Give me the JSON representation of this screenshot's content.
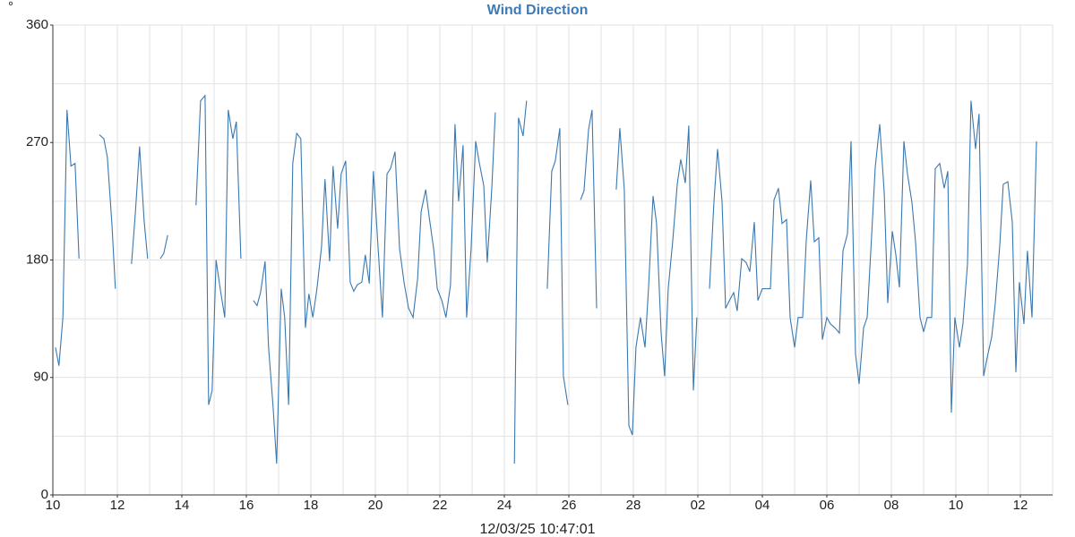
{
  "chart_data": {
    "type": "line",
    "title": "Wind Direction",
    "x_label": "12/03/25 10:47:01",
    "y_label": "°",
    "xlim": [
      0,
      31
    ],
    "ylim": [
      0,
      360
    ],
    "yticks": [
      0,
      90,
      180,
      270,
      360
    ],
    "xticks": [
      {
        "value": 0,
        "label": "10"
      },
      {
        "value": 2,
        "label": "12"
      },
      {
        "value": 4,
        "label": "14"
      },
      {
        "value": 6,
        "label": "16"
      },
      {
        "value": 8,
        "label": "18"
      },
      {
        "value": 10,
        "label": "20"
      },
      {
        "value": 12,
        "label": "22"
      },
      {
        "value": 14,
        "label": "24"
      },
      {
        "value": 16,
        "label": "26"
      },
      {
        "value": 18,
        "label": "28"
      },
      {
        "value": 20,
        "label": "02"
      },
      {
        "value": 22,
        "label": "04"
      },
      {
        "value": 24,
        "label": "06"
      },
      {
        "value": 26,
        "label": "08"
      },
      {
        "value": 28,
        "label": "10"
      },
      {
        "value": 30,
        "label": "12"
      }
    ],
    "grid": true,
    "grid_step": {
      "x": 1,
      "y": 45
    },
    "series": [
      {
        "name": "Wind Direction",
        "color": "#3a78b0",
        "x": [
          0.08,
          0.19,
          0.31,
          0.44,
          0.56,
          0.69,
          0.81,
          1.1,
          1.44,
          1.58,
          1.69,
          1.83,
          1.94,
          2.2,
          2.44,
          2.56,
          2.69,
          2.83,
          2.94,
          3.1,
          3.33,
          3.44,
          3.56,
          4.0,
          4.44,
          4.58,
          4.72,
          4.83,
          4.94,
          5.06,
          5.19,
          5.33,
          5.44,
          5.58,
          5.69,
          5.83,
          6.0,
          6.22,
          6.33,
          6.44,
          6.58,
          6.69,
          6.83,
          6.94,
          7.08,
          7.19,
          7.31,
          7.44,
          7.56,
          7.69,
          7.83,
          7.94,
          8.06,
          8.19,
          8.33,
          8.44,
          8.58,
          8.69,
          8.83,
          8.94,
          9.08,
          9.22,
          9.33,
          9.44,
          9.58,
          9.69,
          9.81,
          9.94,
          10.08,
          10.22,
          10.36,
          10.47,
          10.61,
          10.75,
          10.89,
          11.03,
          11.17,
          11.31,
          11.42,
          11.56,
          11.67,
          11.81,
          11.92,
          12.06,
          12.19,
          12.33,
          12.47,
          12.58,
          12.72,
          12.83,
          12.97,
          13.11,
          13.22,
          13.36,
          13.47,
          13.61,
          13.72,
          14.0,
          14.31,
          14.44,
          14.58,
          14.69,
          15.0,
          15.33,
          15.47,
          15.58,
          15.72,
          15.83,
          15.97,
          16.2,
          16.36,
          16.47,
          16.61,
          16.72,
          16.86,
          17.2,
          17.47,
          17.58,
          17.72,
          17.86,
          17.97,
          18.08,
          18.22,
          18.36,
          18.47,
          18.61,
          18.72,
          18.86,
          18.97,
          19.08,
          19.22,
          19.36,
          19.47,
          19.61,
          19.72,
          19.86,
          19.97,
          20.2,
          20.36,
          20.5,
          20.61,
          20.75,
          20.86,
          21.0,
          21.11,
          21.22,
          21.36,
          21.5,
          21.61,
          21.75,
          21.86,
          22.0,
          22.11,
          22.25,
          22.36,
          22.5,
          22.61,
          22.75,
          22.86,
          23.0,
          23.11,
          23.25,
          23.36,
          23.5,
          23.61,
          23.75,
          23.86,
          24.0,
          24.11,
          24.25,
          24.39,
          24.5,
          24.64,
          24.75,
          24.89,
          25.0,
          25.14,
          25.25,
          25.39,
          25.5,
          25.64,
          25.78,
          25.89,
          26.03,
          26.14,
          26.25,
          26.39,
          26.5,
          26.64,
          26.75,
          26.89,
          27.0,
          27.11,
          27.25,
          27.36,
          27.5,
          27.64,
          27.75,
          27.86,
          27.97,
          28.11,
          28.22,
          28.36,
          28.47,
          28.61,
          28.72,
          28.86,
          28.97,
          29.11,
          29.22,
          29.36,
          29.47,
          29.61,
          29.75,
          29.86,
          29.97,
          30.11,
          30.22,
          30.36,
          30.5
        ],
        "values": [
          113,
          99,
          136,
          295,
          252,
          254,
          181,
          null,
          276,
          273,
          259,
          208,
          158,
          null,
          177,
          217,
          267,
          210,
          181,
          null,
          181,
          185,
          199,
          null,
          222,
          302,
          306,
          69,
          80,
          180,
          158,
          136,
          295,
          273,
          286,
          181,
          null,
          149,
          145,
          155,
          179,
          113,
          67,
          24,
          158,
          136,
          69,
          254,
          277,
          273,
          128,
          154,
          136,
          158,
          190,
          242,
          179,
          252,
          204,
          246,
          256,
          163,
          156,
          161,
          163,
          184,
          162,
          248,
          191,
          136,
          246,
          250,
          263,
          189,
          163,
          143,
          136,
          166,
          217,
          234,
          213,
          188,
          158,
          149,
          136,
          161,
          284,
          225,
          268,
          136,
          189,
          271,
          255,
          237,
          178,
          235,
          293,
          null,
          24,
          289,
          275,
          302,
          null,
          158,
          248,
          256,
          281,
          91,
          69,
          null,
          226,
          233,
          280,
          295,
          143,
          null,
          234,
          281,
          234,
          53,
          46,
          113,
          136,
          113,
          158,
          229,
          208,
          124,
          91,
          158,
          194,
          238,
          257,
          239,
          283,
          80,
          136,
          null,
          158,
          225,
          265,
          225,
          143,
          150,
          155,
          141,
          181,
          178,
          171,
          209,
          149,
          158,
          158,
          158,
          226,
          235,
          208,
          211,
          136,
          113,
          136,
          136,
          195,
          241,
          194,
          197,
          119,
          136,
          131,
          128,
          124,
          187,
          200,
          271,
          108,
          85,
          128,
          136,
          199,
          251,
          284,
          231,
          147,
          202,
          184,
          159,
          271,
          246,
          224,
          194,
          136,
          125,
          136,
          136,
          250,
          254,
          235,
          248,
          63,
          136,
          113,
          131,
          177,
          302,
          265,
          292,
          91,
          105,
          121,
          146,
          191,
          238,
          240,
          209,
          94,
          163,
          131,
          187,
          136,
          271
        ]
      }
    ]
  }
}
